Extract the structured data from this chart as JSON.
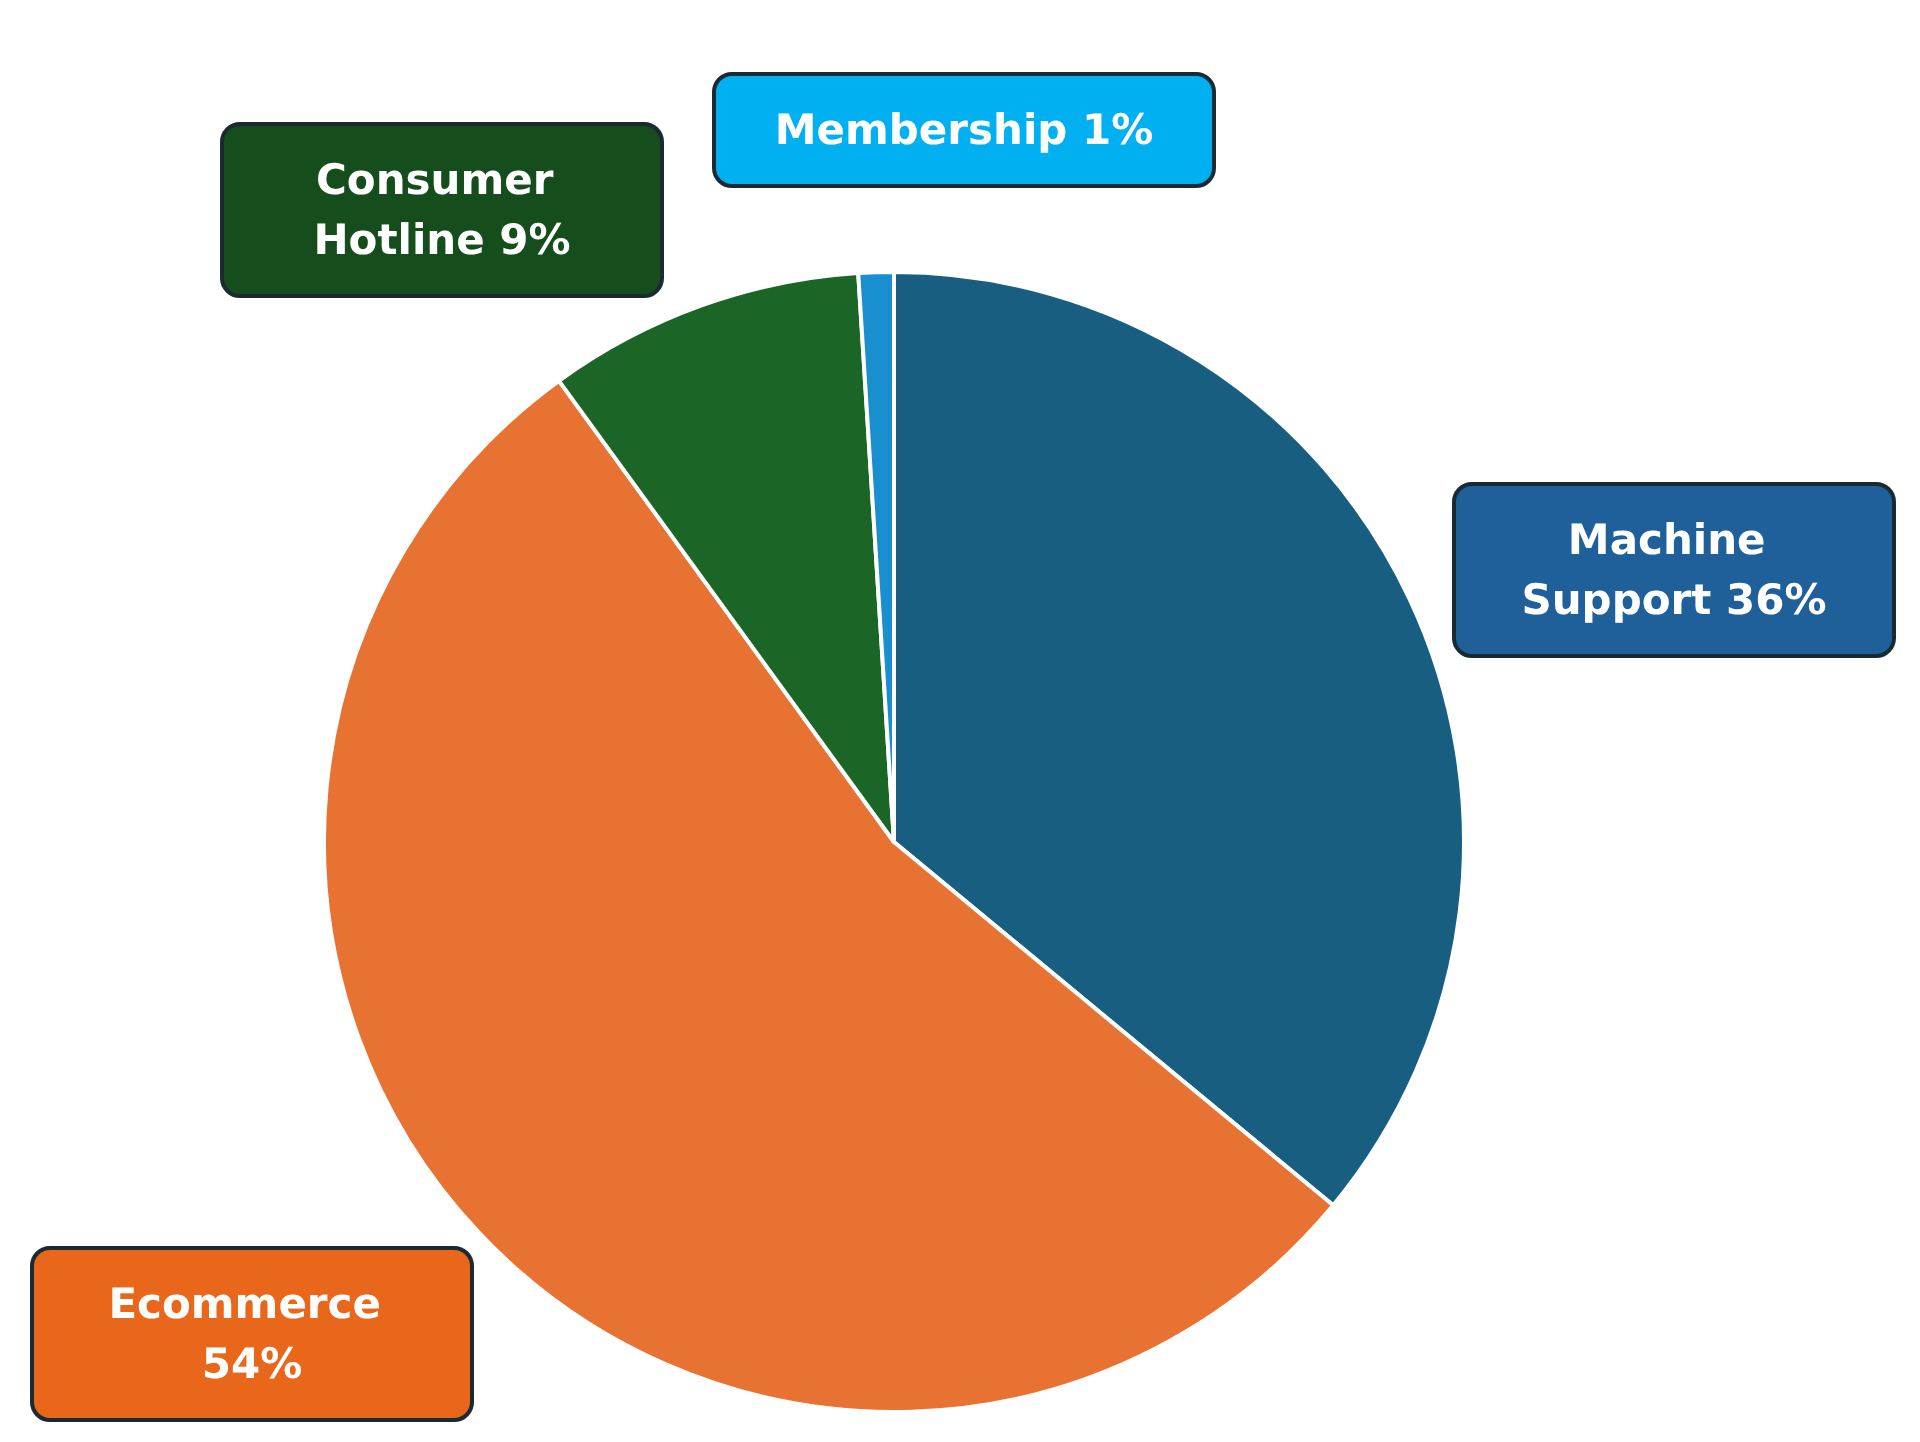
{
  "chart_data": {
    "type": "pie",
    "categories": [
      "Machine Support",
      "Ecommerce",
      "Consumer Hotline",
      "Membership"
    ],
    "values": [
      36,
      54,
      9,
      1
    ],
    "colors": [
      "#175e80",
      "#e87232",
      "#1b6626",
      "#1a8fd0"
    ],
    "legend": false,
    "value_labels": [
      "36%",
      "54%",
      "9%",
      "1%"
    ]
  }
}
